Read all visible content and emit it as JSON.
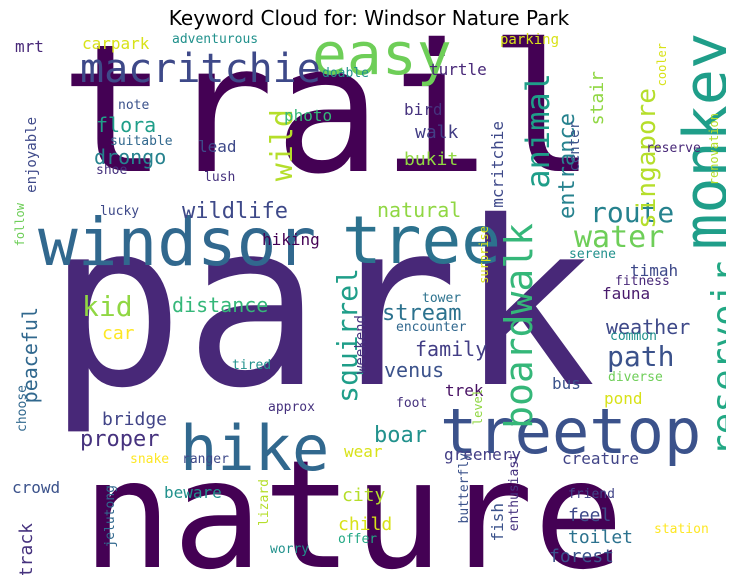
{
  "chart_data": {
    "type": "wordcloud",
    "title": "Keyword Cloud for: Windsor Nature Park",
    "words": [
      {
        "text": "park",
        "weight": 1.0,
        "color": "#482878"
      },
      {
        "text": "trail",
        "weight": 0.88,
        "color": "#440154"
      },
      {
        "text": "nature",
        "weight": 0.85,
        "color": "#440154"
      },
      {
        "text": "windsor",
        "weight": 0.5,
        "color": "#31688e"
      },
      {
        "text": "treetop",
        "weight": 0.45,
        "color": "#3b528b"
      },
      {
        "text": "tree",
        "weight": 0.45,
        "color": "#2c728e"
      },
      {
        "text": "hike",
        "weight": 0.4,
        "color": "#31688e"
      },
      {
        "text": "monkey",
        "weight": 0.42,
        "color": "#1f9e89"
      },
      {
        "text": "easy",
        "weight": 0.38,
        "color": "#6ece58"
      },
      {
        "text": "macritchie",
        "weight": 0.3,
        "color": "#3e4989"
      },
      {
        "text": "boardwalk",
        "weight": 0.3,
        "color": "#35b779"
      },
      {
        "text": "reservoir",
        "weight": 0.28,
        "color": "#22a884"
      },
      {
        "text": "animal",
        "weight": 0.25,
        "color": "#1f9e89"
      },
      {
        "text": "water",
        "weight": 0.22,
        "color": "#6ece58"
      },
      {
        "text": "wild",
        "weight": 0.22,
        "color": "#b5de2b"
      },
      {
        "text": "squirrel",
        "weight": 0.22,
        "color": "#1f9e89"
      },
      {
        "text": "path",
        "weight": 0.2,
        "color": "#3b528b"
      },
      {
        "text": "route",
        "weight": 0.2,
        "color": "#26828e"
      },
      {
        "text": "singapore",
        "weight": 0.2,
        "color": "#b5de2b"
      },
      {
        "text": "kid",
        "weight": 0.2,
        "color": "#90d743"
      },
      {
        "text": "wildlife",
        "weight": 0.18,
        "color": "#3e4989"
      },
      {
        "text": "entrance",
        "weight": 0.18,
        "color": "#26828e"
      },
      {
        "text": "stream",
        "weight": 0.18,
        "color": "#2c728e"
      },
      {
        "text": "distance",
        "weight": 0.17,
        "color": "#35b779"
      },
      {
        "text": "boar",
        "weight": 0.17,
        "color": "#21918c"
      },
      {
        "text": "proper",
        "weight": 0.17,
        "color": "#46327e"
      },
      {
        "text": "venus",
        "weight": 0.16,
        "color": "#3b528b"
      },
      {
        "text": "weather",
        "weight": 0.15,
        "color": "#3e4989"
      },
      {
        "text": "natural",
        "weight": 0.15,
        "color": "#90d743"
      },
      {
        "text": "flora",
        "weight": 0.15,
        "color": "#1f9e89"
      },
      {
        "text": "drongo",
        "weight": 0.15,
        "color": "#26828e"
      },
      {
        "text": "family",
        "weight": 0.14,
        "color": "#433e85"
      },
      {
        "text": "peaceful",
        "weight": 0.14,
        "color": "#31688e"
      },
      {
        "text": "walk",
        "weight": 0.13,
        "color": "#433e85"
      },
      {
        "text": "bukit",
        "weight": 0.13,
        "color": "#90d743"
      },
      {
        "text": "stair",
        "weight": 0.13,
        "color": "#90d743"
      },
      {
        "text": "car",
        "weight": 0.12,
        "color": "#fde725"
      },
      {
        "text": "bridge",
        "weight": 0.12,
        "color": "#414487"
      },
      {
        "text": "city",
        "weight": 0.12,
        "color": "#b5de2b"
      },
      {
        "text": "child",
        "weight": 0.12,
        "color": "#d8e219"
      },
      {
        "text": "forest",
        "weight": 0.12,
        "color": "#3b528b"
      },
      {
        "text": "feel",
        "weight": 0.11,
        "color": "#3e4989"
      },
      {
        "text": "toilet",
        "weight": 0.11,
        "color": "#2c728e"
      },
      {
        "text": "track",
        "weight": 0.11,
        "color": "#46327e"
      },
      {
        "text": "fauna",
        "weight": 0.11,
        "color": "#481a6c"
      },
      {
        "text": "trek",
        "weight": 0.1,
        "color": "#471063"
      },
      {
        "text": "turtle",
        "weight": 0.1,
        "color": "#482878"
      },
      {
        "text": "mcritchie",
        "weight": 0.1,
        "color": "#3e4989"
      },
      {
        "text": "mrt",
        "weight": 0.1,
        "color": "#482878"
      },
      {
        "text": "carpark",
        "weight": 0.1,
        "color": "#d8e219"
      },
      {
        "text": "photo",
        "weight": 0.1,
        "color": "#35b779"
      },
      {
        "text": "bird",
        "weight": 0.1,
        "color": "#46327e"
      },
      {
        "text": "hiking",
        "weight": 0.1,
        "color": "#440154"
      },
      {
        "text": "lead",
        "weight": 0.1,
        "color": "#3e4989"
      },
      {
        "text": "wear",
        "weight": 0.1,
        "color": "#d8e219"
      },
      {
        "text": "pond",
        "weight": 0.1,
        "color": "#d8e219"
      },
      {
        "text": "bus",
        "weight": 0.09,
        "color": "#3b528b"
      },
      {
        "text": "crowd",
        "weight": 0.09,
        "color": "#3b528b"
      },
      {
        "text": "beware",
        "weight": 0.09,
        "color": "#21918c"
      },
      {
        "text": "fish",
        "weight": 0.09,
        "color": "#3b528b"
      },
      {
        "text": "creature",
        "weight": 0.09,
        "color": "#414487"
      },
      {
        "text": "greenery",
        "weight": 0.09,
        "color": "#433e85"
      },
      {
        "text": "timah",
        "weight": 0.09,
        "color": "#3e4989"
      },
      {
        "text": "weekend",
        "weight": 0.08,
        "color": "#46327e"
      },
      {
        "text": "enjoyable",
        "weight": 0.08,
        "color": "#3e4989"
      },
      {
        "text": "center",
        "weight": 0.08,
        "color": "#3b528b"
      },
      {
        "text": "parking",
        "weight": 0.08,
        "color": "#d8e219"
      },
      {
        "text": "adventurous",
        "weight": 0.07,
        "color": "#21918c"
      },
      {
        "text": "doable",
        "weight": 0.07,
        "color": "#21918c"
      },
      {
        "text": "note",
        "weight": 0.07,
        "color": "#3b528b"
      },
      {
        "text": "suitable",
        "weight": 0.07,
        "color": "#31688e"
      },
      {
        "text": "shoe",
        "weight": 0.07,
        "color": "#46327e"
      },
      {
        "text": "lush",
        "weight": 0.07,
        "color": "#46327e"
      },
      {
        "text": "lucky",
        "weight": 0.07,
        "color": "#3e4989"
      },
      {
        "text": "follow",
        "weight": 0.07,
        "color": "#6ece58"
      },
      {
        "text": "cooler",
        "weight": 0.07,
        "color": "#d8e219"
      },
      {
        "text": "renovation",
        "weight": 0.07,
        "color": "#b5de2b"
      },
      {
        "text": "reserve",
        "weight": 0.07,
        "color": "#482878"
      },
      {
        "text": "serene",
        "weight": 0.07,
        "color": "#21918c"
      },
      {
        "text": "surprise",
        "weight": 0.07,
        "color": "#d8e219"
      },
      {
        "text": "fitness",
        "weight": 0.07,
        "color": "#482878"
      },
      {
        "text": "common",
        "weight": 0.07,
        "color": "#21918c"
      },
      {
        "text": "diverse",
        "weight": 0.07,
        "color": "#6ece58"
      },
      {
        "text": "tower",
        "weight": 0.07,
        "color": "#2c728e"
      },
      {
        "text": "encounter",
        "weight": 0.07,
        "color": "#31688e"
      },
      {
        "text": "tired",
        "weight": 0.07,
        "color": "#21918c"
      },
      {
        "text": "approx",
        "weight": 0.07,
        "color": "#46327e"
      },
      {
        "text": "foot",
        "weight": 0.07,
        "color": "#46327e"
      },
      {
        "text": "level",
        "weight": 0.07,
        "color": "#90d743"
      },
      {
        "text": "choose",
        "weight": 0.07,
        "color": "#31688e"
      },
      {
        "text": "snake",
        "weight": 0.07,
        "color": "#fde725"
      },
      {
        "text": "ranger",
        "weight": 0.07,
        "color": "#3e4989"
      },
      {
        "text": "butterfly",
        "weight": 0.07,
        "color": "#3b528b"
      },
      {
        "text": "enthusiast",
        "weight": 0.07,
        "color": "#46327e"
      },
      {
        "text": "friend",
        "weight": 0.07,
        "color": "#414487"
      },
      {
        "text": "station",
        "weight": 0.07,
        "color": "#fde725"
      },
      {
        "text": "lizard",
        "weight": 0.07,
        "color": "#b5de2b"
      },
      {
        "text": "worry",
        "weight": 0.07,
        "color": "#21918c"
      },
      {
        "text": "offer",
        "weight": 0.07,
        "color": "#22a884"
      },
      {
        "text": "jelutong",
        "weight": 0.07,
        "color": "#31688e"
      }
    ]
  }
}
